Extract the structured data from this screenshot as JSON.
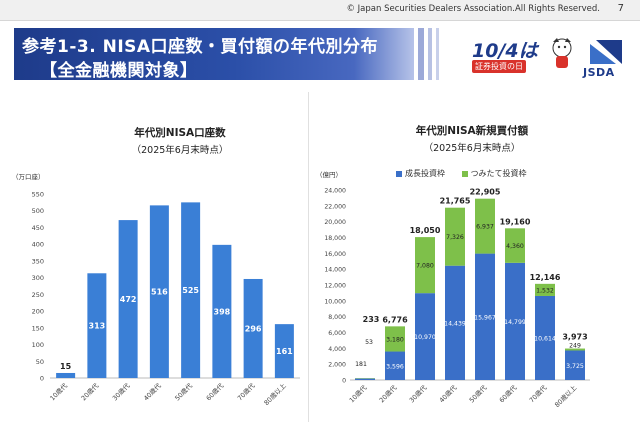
{
  "header": {
    "copyright": "© Japan Securities Dealers Association.All Rights Reserved.",
    "page_number": "7",
    "title_line1": "参考1-3. NISA口座数・買付額の年代別分布",
    "title_line2": "【全金融機関対象】",
    "badge_date": "10/4は",
    "badge_caption": "証券投資の日",
    "logo_text": "JSDA"
  },
  "colors": {
    "title_band": "#1e3b8a",
    "bar_blue": "#3a7fd6",
    "bar_growth": "#3a6fc8",
    "bar_tsumitate": "#7ec04a"
  },
  "chart_data": [
    {
      "type": "bar",
      "title": "年代別NISA口座数",
      "subtitle": "（2025年6月末時点）",
      "unit": "（万口座）",
      "categories": [
        "10歳代",
        "20歳代",
        "30歳代",
        "40歳代",
        "50歳代",
        "60歳代",
        "70歳代",
        "80歳以上"
      ],
      "values": [
        15,
        313,
        472,
        516,
        525,
        398,
        296,
        161
      ],
      "ylim": [
        0,
        550
      ],
      "yticks": [
        0,
        50,
        100,
        150,
        200,
        250,
        300,
        350,
        400,
        450,
        500,
        550
      ]
    },
    {
      "type": "bar",
      "stacked": true,
      "title": "年代別NISA新規買付額",
      "subtitle": "（2025年6月末時点）",
      "unit": "（億円）",
      "categories": [
        "10歳代",
        "20歳代",
        "30歳代",
        "40歳代",
        "50歳代",
        "60歳代",
        "70歳代",
        "80歳以上"
      ],
      "series": [
        {
          "name": "成長投資枠",
          "values": [
            181,
            3596,
            10970,
            14439,
            15967,
            14799,
            10614,
            3725
          ]
        },
        {
          "name": "つみたて投資枠",
          "values": [
            53,
            3180,
            7080,
            7326,
            6937,
            4360,
            1532,
            249
          ]
        }
      ],
      "totals": [
        233,
        6776,
        18050,
        21765,
        22905,
        19160,
        12146,
        3973
      ],
      "ylim": [
        0,
        24000
      ],
      "yticks": [
        0,
        2000,
        4000,
        6000,
        8000,
        10000,
        12000,
        14000,
        16000,
        18000,
        20000,
        22000,
        24000
      ],
      "legend": [
        "成長投資枠",
        "つみたて投資枠"
      ]
    }
  ]
}
